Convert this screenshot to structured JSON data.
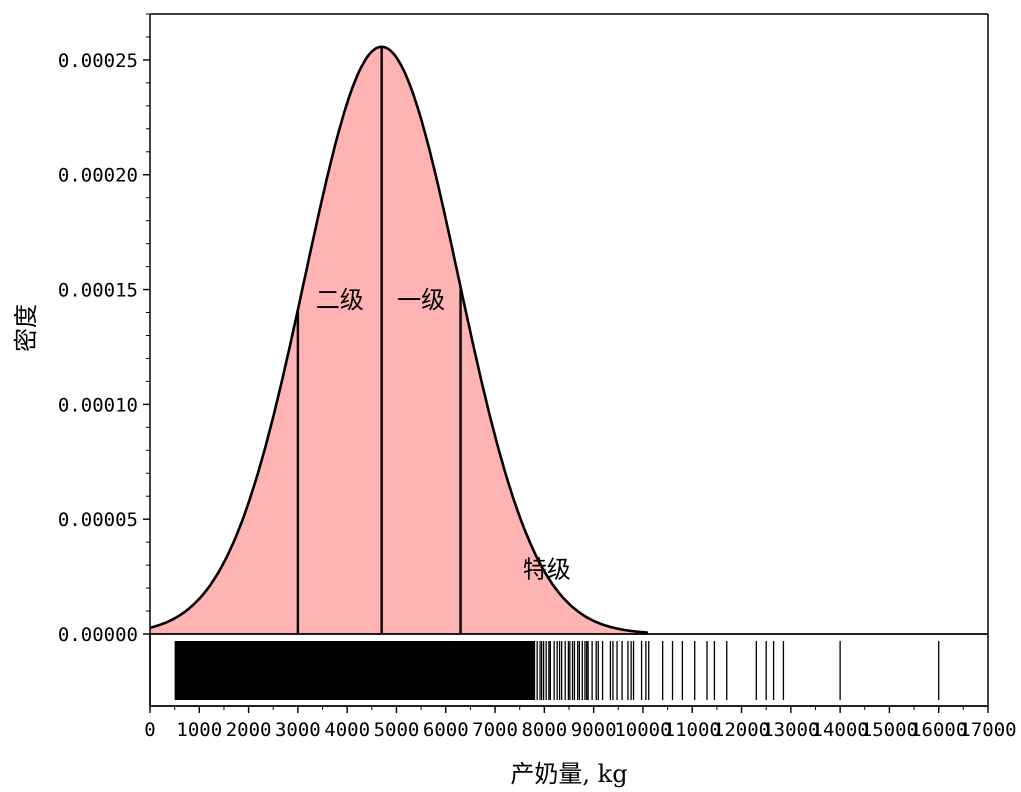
{
  "chart_data": {
    "type": "area",
    "xlabel": "产奶量, kg",
    "ylabel": "密度",
    "xlim": [
      0,
      17000
    ],
    "ylim": [
      0,
      0.00027
    ],
    "x_ticks": [
      0,
      1000,
      2000,
      3000,
      4000,
      5000,
      6000,
      7000,
      8000,
      9000,
      10000,
      11000,
      12000,
      13000,
      14000,
      15000,
      16000,
      17000
    ],
    "x_tick_labels": [
      "0",
      "1000",
      "2000",
      "3000",
      "4000",
      "5000",
      "6000",
      "7000",
      "8000",
      "9000",
      "10000",
      "11000",
      "12000",
      "13000",
      "14000",
      "15000",
      "16000",
      "17000"
    ],
    "y_ticks": [
      0,
      5e-05,
      0.0001,
      0.00015,
      0.0002,
      0.00025
    ],
    "y_tick_labels": [
      "0.00000",
      "0.00005",
      "0.00010",
      "0.00015",
      "0.00020",
      "0.00025"
    ],
    "curve": {
      "distribution": "normal",
      "mean": 4700,
      "sd": 1560,
      "x_start": 0,
      "x_end": 10100
    },
    "fill_color": "#ffb3b3",
    "cut_lines": [
      3000,
      4700,
      6300
    ],
    "regions": [
      {
        "label": "二级",
        "x": 3850,
        "y": 0.000142
      },
      {
        "label": "一级",
        "x": 5500,
        "y": 0.000142
      },
      {
        "label": "特级",
        "x": 8050,
        "y": 2.45e-05
      }
    ],
    "rug_ticks": [
      10400,
      10600,
      10800,
      11050,
      11300,
      11450,
      11700,
      12300,
      12500,
      12650,
      12850,
      14000,
      16000
    ],
    "rug_dense_range": [
      500,
      7800
    ],
    "rug_sparse_range": [
      7800,
      10200
    ]
  }
}
